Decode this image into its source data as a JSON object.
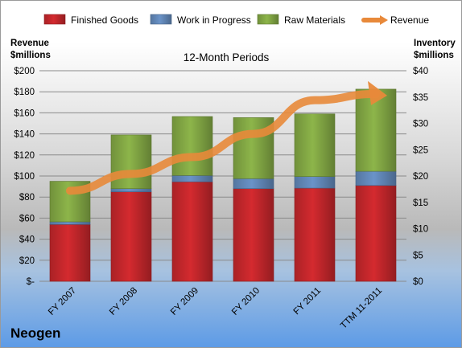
{
  "company": "Neogen",
  "chart_data": {
    "type": "bar",
    "stacked": true,
    "title": "12-Month Periods",
    "categories": [
      "FY 2007",
      "FY 2008",
      "FY 2009",
      "FY 2010",
      "FY 2011",
      "TTM 11-2011"
    ],
    "series": [
      {
        "name": "Finished Goods",
        "axis": "right",
        "color": "#d42a2f",
        "values": [
          10.8,
          17.0,
          18.9,
          17.6,
          17.7,
          18.2
        ]
      },
      {
        "name": "Work in Progress",
        "axis": "right",
        "color": "#6a93c8",
        "values": [
          0.5,
          0.6,
          1.2,
          1.9,
          2.2,
          2.7
        ]
      },
      {
        "name": "Raw Materials",
        "axis": "right",
        "color": "#8db54a",
        "values": [
          7.7,
          10.2,
          11.2,
          11.6,
          11.9,
          15.6
        ]
      },
      {
        "name": "Revenue",
        "axis": "left",
        "type": "line",
        "color": "#e8893a",
        "values": [
          86,
          102,
          118,
          140,
          172,
          178
        ]
      }
    ],
    "left_axis": {
      "title": [
        "Revenue",
        "$millions"
      ],
      "ylim": [
        0,
        200
      ],
      "ticks": [
        "$-",
        "$20",
        "$40",
        "$60",
        "$80",
        "$100",
        "$120",
        "$140",
        "$160",
        "$180",
        "$200"
      ]
    },
    "right_axis": {
      "title": [
        "Inventory",
        "$millions"
      ],
      "ylim": [
        0,
        40
      ],
      "ticks": [
        "$0",
        "$5",
        "$10",
        "$15",
        "$20",
        "$25",
        "$30",
        "$35",
        "$40"
      ]
    },
    "legend_placement": "top",
    "grid": true
  }
}
